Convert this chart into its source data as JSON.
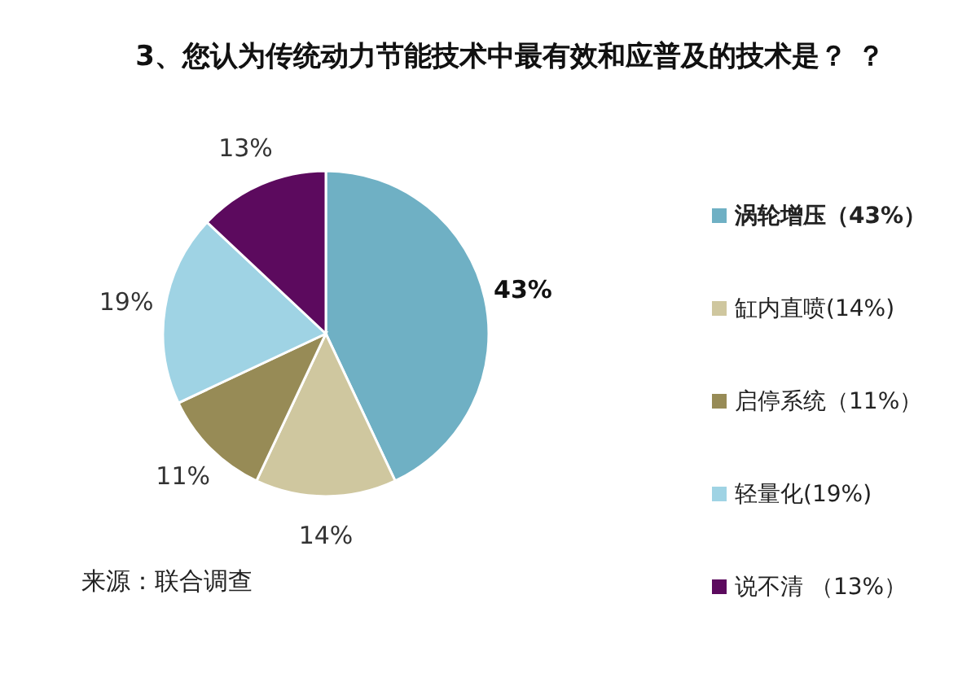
{
  "chart_data": {
    "type": "pie",
    "title": "3、您认为传统动力节能技术中最有效和应普及的技术是？ ？",
    "categories": [
      "涡轮增压（43%）",
      "缸内直喷(14%)",
      "启停系统（11%）",
      "轻量化(19%)",
      "说不清 （13%）"
    ],
    "values": [
      43,
      14,
      11,
      19,
      13
    ],
    "colors": [
      "#6fb0c4",
      "#cfc79f",
      "#978b56",
      "#9fd3e4",
      "#5c0a5e"
    ],
    "value_labels": [
      "43%",
      "14%",
      "11%",
      "19%",
      "13%"
    ],
    "legend": "right",
    "annotations": [
      "来源：联合调查"
    ]
  }
}
